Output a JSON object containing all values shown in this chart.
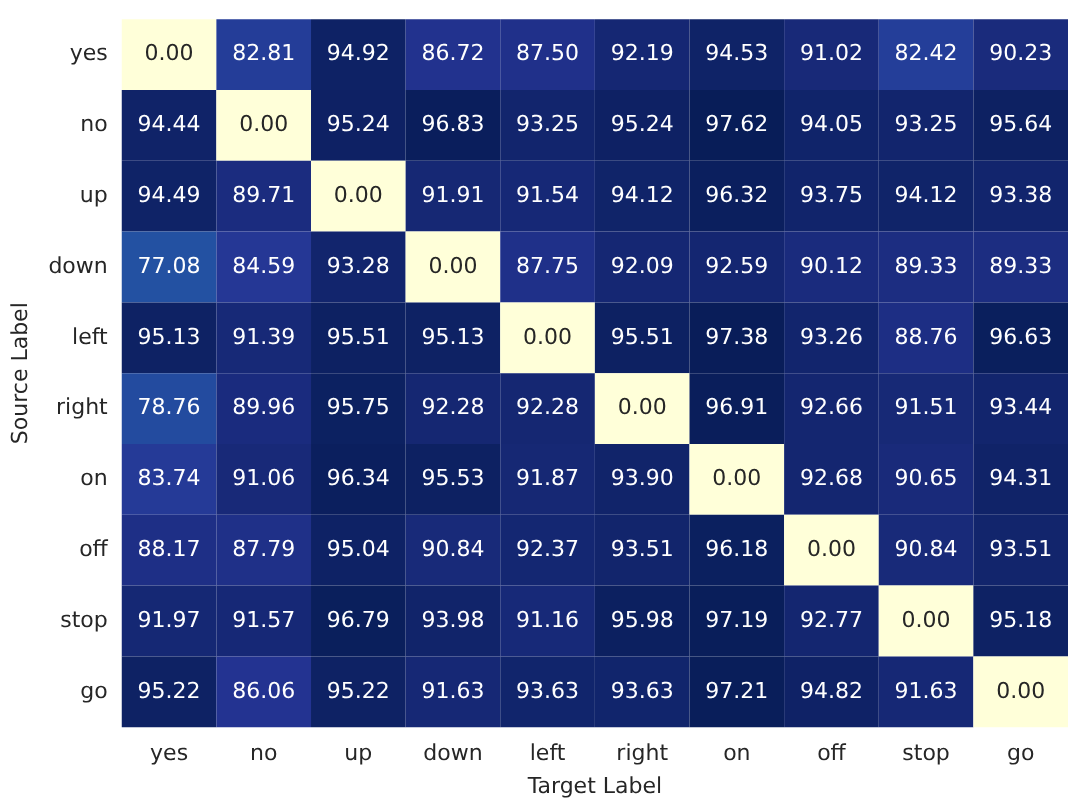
{
  "chart_data": {
    "type": "heatmap",
    "xlabel": "Target Label",
    "ylabel": "Source Label",
    "categories": [
      "yes",
      "no",
      "up",
      "down",
      "left",
      "right",
      "on",
      "off",
      "stop",
      "go"
    ],
    "y_categories": [
      "yes",
      "no",
      "up",
      "down",
      "left",
      "right",
      "on",
      "off",
      "stop",
      "go"
    ],
    "cells": [
      [
        0,
        82.81,
        94.92,
        86.72,
        87.5,
        92.19,
        94.53,
        91.02,
        82.42,
        90.23
      ],
      [
        94.44,
        0,
        95.24,
        96.83,
        93.25,
        95.24,
        97.62,
        94.05,
        93.25,
        95.64
      ],
      [
        94.49,
        89.71,
        0,
        91.91,
        91.54,
        94.12,
        96.32,
        93.75,
        94.12,
        93.38
      ],
      [
        77.08,
        84.59,
        93.28,
        0,
        87.75,
        92.09,
        92.59,
        90.12,
        89.33,
        89.33
      ],
      [
        95.13,
        91.39,
        95.51,
        95.13,
        0,
        95.51,
        97.38,
        93.26,
        88.76,
        96.63
      ],
      [
        78.76,
        89.96,
        95.75,
        92.28,
        92.28,
        0,
        96.91,
        92.66,
        91.51,
        93.44
      ],
      [
        83.74,
        91.06,
        96.34,
        95.53,
        91.87,
        93.9,
        0,
        92.68,
        90.65,
        94.31
      ],
      [
        88.17,
        87.79,
        95.04,
        90.84,
        92.37,
        93.51,
        96.18,
        0,
        90.84,
        93.51
      ],
      [
        91.97,
        91.57,
        96.79,
        93.98,
        91.16,
        95.98,
        97.19,
        92.77,
        0,
        95.18
      ],
      [
        95.22,
        86.06,
        95.22,
        91.63,
        93.63,
        93.63,
        97.21,
        94.82,
        91.63,
        0
      ]
    ],
    "cell_labels": [
      [
        "0.00",
        "82.81",
        "94.92",
        "86.72",
        "87.50",
        "92.19",
        "94.53",
        "91.02",
        "82.42",
        "90.23"
      ],
      [
        "94.44",
        "0.00",
        "95.24",
        "96.83",
        "93.25",
        "95.24",
        "97.62",
        "94.05",
        "93.25",
        "95.64"
      ],
      [
        "94.49",
        "89.71",
        "0.00",
        "91.91",
        "91.54",
        "94.12",
        "96.32",
        "93.75",
        "94.12",
        "93.38"
      ],
      [
        "77.08",
        "84.59",
        "93.28",
        "0.00",
        "87.75",
        "92.09",
        "92.59",
        "90.12",
        "89.33",
        "89.33"
      ],
      [
        "95.13",
        "91.39",
        "95.51",
        "95.13",
        "0.00",
        "95.51",
        "97.38",
        "93.26",
        "88.76",
        "96.63"
      ],
      [
        "78.76",
        "89.96",
        "95.75",
        "92.28",
        "92.28",
        "0.00",
        "96.91",
        "92.66",
        "91.51",
        "93.44"
      ],
      [
        "83.74",
        "91.06",
        "96.34",
        "95.53",
        "91.87",
        "93.90",
        "0.00",
        "92.68",
        "90.65",
        "94.31"
      ],
      [
        "88.17",
        "87.79",
        "95.04",
        "90.84",
        "92.37",
        "93.51",
        "96.18",
        "0.00",
        "90.84",
        "93.51"
      ],
      [
        "91.97",
        "91.57",
        "96.79",
        "93.98",
        "91.16",
        "95.98",
        "97.19",
        "92.77",
        "0.00",
        "95.18"
      ],
      [
        "95.22",
        "86.06",
        "95.22",
        "91.63",
        "93.63",
        "93.63",
        "97.21",
        "94.82",
        "91.63",
        "0.00"
      ]
    ]
  }
}
